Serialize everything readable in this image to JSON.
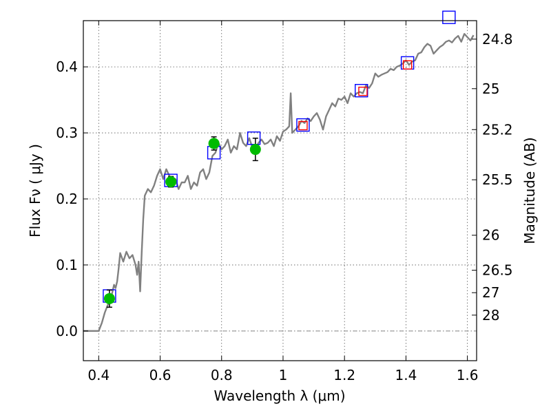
{
  "chart_data": {
    "type": "line",
    "xlabel": "Wavelength  λ (μm)",
    "ylabel": "Flux  Fν  ( μJy )",
    "ylabel_right": "Magnitude (AB)",
    "xlim": [
      0.35,
      1.63
    ],
    "ylim": [
      -0.045,
      0.47
    ],
    "x_ticks": [
      {
        "value": 0.4,
        "label": "0.4"
      },
      {
        "value": 0.6,
        "label": "0.6"
      },
      {
        "value": 0.8,
        "label": "0.8"
      },
      {
        "value": 1.0,
        "label": "1"
      },
      {
        "value": 1.2,
        "label": "1.2"
      },
      {
        "value": 1.4,
        "label": "1.4"
      },
      {
        "value": 1.6,
        "label": "1.6"
      }
    ],
    "y_ticks": [
      {
        "value": 0.0,
        "label": "0.0"
      },
      {
        "value": 0.1,
        "label": "0.1"
      },
      {
        "value": 0.2,
        "label": "0.2"
      },
      {
        "value": 0.3,
        "label": "0.3"
      },
      {
        "value": 0.4,
        "label": "0.4"
      }
    ],
    "mag_ticks": [
      {
        "value": 0.442,
        "label": "24.8"
      },
      {
        "value": 0.367,
        "label": "25"
      },
      {
        "value": 0.305,
        "label": "25.2"
      },
      {
        "value": 0.229,
        "label": "25.5"
      },
      {
        "value": 0.145,
        "label": "26"
      },
      {
        "value": 0.092,
        "label": "26.5"
      },
      {
        "value": 0.058,
        "label": "27"
      },
      {
        "value": 0.024,
        "label": "28"
      }
    ],
    "grid": true,
    "zero_line": true,
    "colors": {
      "model": "#808080",
      "observed": "#00bb00",
      "errorbar": "#000000",
      "box_blue": "#0000ff",
      "box_red": "#ff0000",
      "zero_line": "#888888"
    },
    "model_spectrum": {
      "x": [
        0.35,
        0.39,
        0.4,
        0.41,
        0.42,
        0.43,
        0.44,
        0.445,
        0.45,
        0.455,
        0.46,
        0.465,
        0.47,
        0.48,
        0.49,
        0.5,
        0.51,
        0.52,
        0.525,
        0.53,
        0.535,
        0.54,
        0.545,
        0.55,
        0.56,
        0.57,
        0.58,
        0.59,
        0.6,
        0.61,
        0.62,
        0.63,
        0.64,
        0.65,
        0.66,
        0.67,
        0.68,
        0.69,
        0.7,
        0.71,
        0.72,
        0.73,
        0.74,
        0.75,
        0.76,
        0.77,
        0.78,
        0.79,
        0.8,
        0.81,
        0.82,
        0.83,
        0.84,
        0.85,
        0.86,
        0.87,
        0.88,
        0.89,
        0.9,
        0.91,
        0.92,
        0.93,
        0.94,
        0.95,
        0.96,
        0.97,
        0.98,
        0.99,
        1.0,
        1.01,
        1.02,
        1.025,
        1.03,
        1.04,
        1.05,
        1.06,
        1.07,
        1.08,
        1.09,
        1.1,
        1.11,
        1.12,
        1.13,
        1.14,
        1.15,
        1.16,
        1.17,
        1.18,
        1.19,
        1.2,
        1.21,
        1.22,
        1.23,
        1.24,
        1.25,
        1.26,
        1.27,
        1.28,
        1.29,
        1.3,
        1.31,
        1.32,
        1.33,
        1.34,
        1.35,
        1.36,
        1.37,
        1.38,
        1.39,
        1.4,
        1.41,
        1.42,
        1.43,
        1.44,
        1.45,
        1.46,
        1.47,
        1.48,
        1.49,
        1.5,
        1.51,
        1.52,
        1.53,
        1.54,
        1.55,
        1.56,
        1.57,
        1.58,
        1.59,
        1.6,
        1.61,
        1.62
      ],
      "y": [
        0.0,
        0.0,
        0.0,
        0.012,
        0.028,
        0.04,
        0.05,
        0.06,
        0.07,
        0.065,
        0.075,
        0.095,
        0.118,
        0.105,
        0.12,
        0.11,
        0.115,
        0.1,
        0.085,
        0.105,
        0.06,
        0.12,
        0.17,
        0.205,
        0.215,
        0.21,
        0.22,
        0.235,
        0.245,
        0.23,
        0.245,
        0.235,
        0.225,
        0.23,
        0.215,
        0.225,
        0.225,
        0.235,
        0.215,
        0.225,
        0.22,
        0.24,
        0.245,
        0.23,
        0.24,
        0.265,
        0.27,
        0.285,
        0.275,
        0.28,
        0.29,
        0.27,
        0.28,
        0.275,
        0.3,
        0.285,
        0.28,
        0.292,
        0.278,
        0.275,
        0.285,
        0.29,
        0.283,
        0.285,
        0.29,
        0.28,
        0.295,
        0.288,
        0.302,
        0.305,
        0.31,
        0.36,
        0.3,
        0.305,
        0.31,
        0.318,
        0.315,
        0.322,
        0.318,
        0.325,
        0.33,
        0.32,
        0.305,
        0.325,
        0.335,
        0.345,
        0.34,
        0.352,
        0.35,
        0.355,
        0.345,
        0.36,
        0.355,
        0.36,
        0.362,
        0.36,
        0.372,
        0.368,
        0.375,
        0.39,
        0.385,
        0.388,
        0.39,
        0.392,
        0.397,
        0.395,
        0.4,
        0.402,
        0.405,
        0.41,
        0.403,
        0.408,
        0.41,
        0.42,
        0.422,
        0.43,
        0.435,
        0.432,
        0.42,
        0.425,
        0.43,
        0.433,
        0.438,
        0.44,
        0.437,
        0.443,
        0.447,
        0.438,
        0.45,
        0.445,
        0.44,
        0.448
      ]
    },
    "observed": [
      {
        "x": 0.435,
        "y": 0.049,
        "err": 0.013
      },
      {
        "x": 0.635,
        "y": 0.226,
        "err": 0.008
      },
      {
        "x": 0.775,
        "y": 0.284,
        "err": 0.01
      },
      {
        "x": 0.91,
        "y": 0.275,
        "err": 0.017
      }
    ],
    "boxes_blue": [
      {
        "x": 0.435,
        "y": 0.053
      },
      {
        "x": 0.635,
        "y": 0.228
      },
      {
        "x": 0.775,
        "y": 0.27
      },
      {
        "x": 0.905,
        "y": 0.292
      },
      {
        "x": 1.065,
        "y": 0.312
      },
      {
        "x": 1.255,
        "y": 0.364
      },
      {
        "x": 1.405,
        "y": 0.406
      },
      {
        "x": 1.54,
        "y": 0.475
      }
    ],
    "boxes_red": [
      {
        "x": 1.065,
        "y": 0.311
      },
      {
        "x": 1.26,
        "y": 0.363
      },
      {
        "x": 1.405,
        "y": 0.403
      }
    ]
  }
}
